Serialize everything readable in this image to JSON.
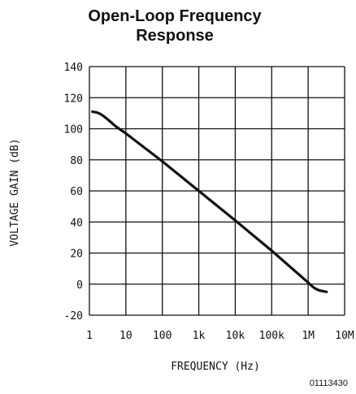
{
  "chart_data": {
    "type": "line",
    "title_line1": "Open-Loop Frequency",
    "title_line2": "Response",
    "xlabel": "FREQUENCY (Hz)",
    "ylabel": "VOLTAGE GAIN (dB)",
    "xscale": "log",
    "xlim": [
      1,
      10000000
    ],
    "ylim": [
      -20,
      140
    ],
    "grid": true,
    "xticks": [
      {
        "value": 1,
        "label": "1"
      },
      {
        "value": 10,
        "label": "10"
      },
      {
        "value": 100,
        "label": "100"
      },
      {
        "value": 1000,
        "label": "1k"
      },
      {
        "value": 10000,
        "label": "10k"
      },
      {
        "value": 100000,
        "label": "100k"
      },
      {
        "value": 1000000,
        "label": "1M"
      },
      {
        "value": 10000000,
        "label": "10M"
      }
    ],
    "yticks": [
      {
        "value": 140,
        "label": "140"
      },
      {
        "value": 120,
        "label": "120"
      },
      {
        "value": 100,
        "label": "100"
      },
      {
        "value": 80,
        "label": "80"
      },
      {
        "value": 60,
        "label": "60"
      },
      {
        "value": 40,
        "label": "40"
      },
      {
        "value": 20,
        "label": "20"
      },
      {
        "value": 0,
        "label": "0"
      },
      {
        "value": -20,
        "label": "-20"
      }
    ],
    "series": [
      {
        "color": "#111111",
        "x": [
          1.2,
          1.6,
          2,
          2.5,
          3,
          4,
          5,
          7,
          10,
          100,
          1000,
          10000,
          100000,
          1000000,
          1300000,
          1600000,
          2000000,
          2500000,
          3200000
        ],
        "y": [
          111,
          110.5,
          109.5,
          108,
          106.5,
          104,
          102,
          99.5,
          97,
          79,
          60,
          41,
          21.5,
          1,
          -1.5,
          -3,
          -4,
          -4.5,
          -5
        ]
      }
    ]
  },
  "figure_code": "01113430"
}
